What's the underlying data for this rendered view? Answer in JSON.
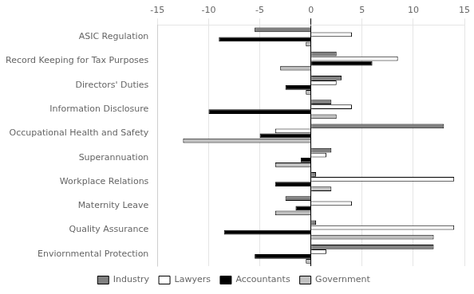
{
  "chart_data": {
    "type": "bar",
    "orientation": "horizontal",
    "categories": [
      "ASIC Regulation",
      "Record Keeping for Tax Purposes",
      "Directors' Duties",
      "Information Disclosure",
      "Occupational Health and Safety",
      "Superannuation",
      "Workplace Relations",
      "Maternity Leave",
      "Quality Assurance",
      "Enviornmental Protection"
    ],
    "series": [
      {
        "name": "Industry",
        "color": "#808080",
        "values": [
          -5.5,
          2.5,
          3.0,
          2.0,
          13.0,
          2.0,
          0.5,
          -2.5,
          0.5,
          12.0
        ]
      },
      {
        "name": "Lawyers",
        "color": "#ffffff",
        "values": [
          4.0,
          8.5,
          2.5,
          4.0,
          -3.5,
          1.5,
          14.0,
          4.0,
          14.0,
          1.5
        ]
      },
      {
        "name": "Accountants",
        "color": "#000000",
        "values": [
          -9.0,
          6.0,
          -2.5,
          -10.0,
          -5.0,
          -1.0,
          -3.5,
          -1.5,
          -8.5,
          -5.5
        ]
      },
      {
        "name": "Government",
        "color": "#c0c0c0",
        "values": [
          -0.5,
          -3.0,
          -0.5,
          2.5,
          -12.5,
          -3.5,
          2.0,
          -3.5,
          12.0,
          -0.5
        ]
      }
    ],
    "xlim": [
      -15,
      15
    ],
    "xticks": [
      -15,
      -10,
      -5,
      0,
      5,
      10,
      15
    ],
    "grid": true,
    "legend": "bottom"
  }
}
